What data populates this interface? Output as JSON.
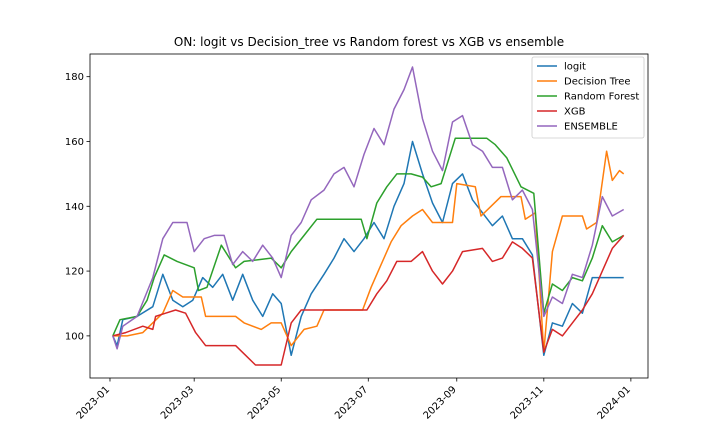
{
  "chart_data": {
    "type": "line",
    "title": "ON: logit vs Decision_tree vs Random forest vs XGB vs ensemble",
    "xlabel": "",
    "ylabel": "",
    "xlim": [
      "2022-12-18",
      "2024-01-13"
    ],
    "ylim": [
      87,
      187
    ],
    "x_ticks": [
      "2023-01",
      "2023-03",
      "2023-05",
      "2023-07",
      "2023-09",
      "2023-11",
      "2024-01"
    ],
    "y_ticks": [
      100,
      120,
      140,
      160,
      180
    ],
    "grid": false,
    "legend": "top-right",
    "series": [
      {
        "name": "logit",
        "color": "#1f77b4",
        "points": [
          [
            "2023-01-03",
            100
          ],
          [
            "2023-01-06",
            97
          ],
          [
            "2023-01-10",
            105
          ],
          [
            "2023-01-20",
            106
          ],
          [
            "2023-01-31",
            109
          ],
          [
            "2023-02-07",
            119
          ],
          [
            "2023-02-14",
            111
          ],
          [
            "2023-02-21",
            109
          ],
          [
            "2023-02-28",
            111
          ],
          [
            "2023-03-07",
            118
          ],
          [
            "2023-03-14",
            115
          ],
          [
            "2023-03-21",
            119
          ],
          [
            "2023-03-28",
            111
          ],
          [
            "2023-04-04",
            119
          ],
          [
            "2023-04-11",
            111
          ],
          [
            "2023-04-18",
            106
          ],
          [
            "2023-04-25",
            113
          ],
          [
            "2023-05-01",
            110
          ],
          [
            "2023-05-08",
            94
          ],
          [
            "2023-05-15",
            106
          ],
          [
            "2023-05-22",
            113
          ],
          [
            "2023-05-31",
            119
          ],
          [
            "2023-06-07",
            124
          ],
          [
            "2023-06-14",
            130
          ],
          [
            "2023-06-21",
            126
          ],
          [
            "2023-06-28",
            130
          ],
          [
            "2023-07-05",
            135
          ],
          [
            "2023-07-12",
            130
          ],
          [
            "2023-07-19",
            140
          ],
          [
            "2023-07-26",
            147
          ],
          [
            "2023-08-01",
            160
          ],
          [
            "2023-08-08",
            150
          ],
          [
            "2023-08-15",
            141
          ],
          [
            "2023-08-22",
            135
          ],
          [
            "2023-08-29",
            147
          ],
          [
            "2023-09-05",
            150
          ],
          [
            "2023-09-12",
            142
          ],
          [
            "2023-09-19",
            138
          ],
          [
            "2023-09-26",
            134
          ],
          [
            "2023-10-03",
            137
          ],
          [
            "2023-10-10",
            130
          ],
          [
            "2023-10-17",
            130
          ],
          [
            "2023-10-24",
            125
          ],
          [
            "2023-11-01",
            94
          ],
          [
            "2023-11-07",
            104
          ],
          [
            "2023-11-14",
            103
          ],
          [
            "2023-11-21",
            110
          ],
          [
            "2023-11-28",
            107
          ],
          [
            "2023-12-05",
            118
          ],
          [
            "2023-12-12",
            118
          ],
          [
            "2023-12-19",
            118
          ],
          [
            "2023-12-27",
            118
          ]
        ]
      },
      {
        "name": "Decision Tree",
        "color": "#ff7f0e",
        "points": [
          [
            "2023-01-03",
            100
          ],
          [
            "2023-01-13",
            100
          ],
          [
            "2023-01-24",
            101
          ],
          [
            "2023-02-07",
            107
          ],
          [
            "2023-02-14",
            114
          ],
          [
            "2023-02-21",
            112
          ],
          [
            "2023-03-06",
            112
          ],
          [
            "2023-03-09",
            106
          ],
          [
            "2023-03-30",
            106
          ],
          [
            "2023-04-05",
            104
          ],
          [
            "2023-04-17",
            102
          ],
          [
            "2023-04-24",
            104
          ],
          [
            "2023-05-01",
            104
          ],
          [
            "2023-05-08",
            97
          ],
          [
            "2023-05-17",
            102
          ],
          [
            "2023-05-26",
            103
          ],
          [
            "2023-05-31",
            108
          ],
          [
            "2023-06-27",
            108
          ],
          [
            "2023-07-03",
            115
          ],
          [
            "2023-07-10",
            122
          ],
          [
            "2023-07-17",
            129
          ],
          [
            "2023-07-24",
            134
          ],
          [
            "2023-08-01",
            137
          ],
          [
            "2023-08-08",
            139
          ],
          [
            "2023-08-15",
            135
          ],
          [
            "2023-08-29",
            135
          ],
          [
            "2023-09-01",
            147
          ],
          [
            "2023-09-14",
            146
          ],
          [
            "2023-09-18",
            137
          ],
          [
            "2023-09-25",
            140
          ],
          [
            "2023-10-02",
            143
          ],
          [
            "2023-10-16",
            143
          ],
          [
            "2023-10-19",
            136
          ],
          [
            "2023-10-26",
            138
          ],
          [
            "2023-11-01",
            95
          ],
          [
            "2023-11-07",
            126
          ],
          [
            "2023-11-14",
            137
          ],
          [
            "2023-11-28",
            137
          ],
          [
            "2023-12-01",
            133
          ],
          [
            "2023-12-08",
            135
          ],
          [
            "2023-12-15",
            157
          ],
          [
            "2023-12-19",
            148
          ],
          [
            "2023-12-24",
            151
          ],
          [
            "2023-12-27",
            150
          ]
        ]
      },
      {
        "name": "Random Forest",
        "color": "#2ca02c",
        "points": [
          [
            "2023-01-03",
            100
          ],
          [
            "2023-01-08",
            105
          ],
          [
            "2023-01-20",
            106
          ],
          [
            "2023-01-27",
            111
          ],
          [
            "2023-02-01",
            118
          ],
          [
            "2023-02-08",
            125
          ],
          [
            "2023-02-17",
            123
          ],
          [
            "2023-03-01",
            121
          ],
          [
            "2023-03-04",
            114
          ],
          [
            "2023-03-10",
            115
          ],
          [
            "2023-03-20",
            128
          ],
          [
            "2023-03-30",
            121
          ],
          [
            "2023-04-05",
            123
          ],
          [
            "2023-04-24",
            124
          ],
          [
            "2023-05-01",
            121
          ],
          [
            "2023-05-08",
            126
          ],
          [
            "2023-05-17",
            131
          ],
          [
            "2023-05-26",
            136
          ],
          [
            "2023-06-26",
            136
          ],
          [
            "2023-06-30",
            130
          ],
          [
            "2023-07-07",
            141
          ],
          [
            "2023-07-14",
            146
          ],
          [
            "2023-07-21",
            150
          ],
          [
            "2023-07-31",
            150
          ],
          [
            "2023-08-08",
            149
          ],
          [
            "2023-08-14",
            146
          ],
          [
            "2023-08-21",
            147
          ],
          [
            "2023-08-31",
            161
          ],
          [
            "2023-09-22",
            161
          ],
          [
            "2023-09-28",
            159
          ],
          [
            "2023-10-06",
            155
          ],
          [
            "2023-10-16",
            146
          ],
          [
            "2023-10-25",
            144
          ],
          [
            "2023-11-01",
            107
          ],
          [
            "2023-11-07",
            116
          ],
          [
            "2023-11-14",
            114
          ],
          [
            "2023-11-21",
            118
          ],
          [
            "2023-11-28",
            117
          ],
          [
            "2023-12-05",
            124
          ],
          [
            "2023-12-12",
            134
          ],
          [
            "2023-12-19",
            129
          ],
          [
            "2023-12-27",
            131
          ]
        ]
      },
      {
        "name": "XGB",
        "color": "#d62728",
        "points": [
          [
            "2023-01-03",
            100
          ],
          [
            "2023-01-12",
            101
          ],
          [
            "2023-01-24",
            103
          ],
          [
            "2023-01-31",
            102
          ],
          [
            "2023-02-02",
            106
          ],
          [
            "2023-02-09",
            107
          ],
          [
            "2023-02-16",
            108
          ],
          [
            "2023-02-23",
            107
          ],
          [
            "2023-03-02",
            101
          ],
          [
            "2023-03-09",
            97
          ],
          [
            "2023-03-30",
            97
          ],
          [
            "2023-04-06",
            94
          ],
          [
            "2023-04-13",
            91
          ],
          [
            "2023-05-01",
            91
          ],
          [
            "2023-05-08",
            104
          ],
          [
            "2023-05-15",
            108
          ],
          [
            "2023-06-30",
            108
          ],
          [
            "2023-07-07",
            113
          ],
          [
            "2023-07-14",
            117
          ],
          [
            "2023-07-21",
            123
          ],
          [
            "2023-07-31",
            123
          ],
          [
            "2023-08-08",
            126
          ],
          [
            "2023-08-15",
            120
          ],
          [
            "2023-08-22",
            116
          ],
          [
            "2023-08-29",
            120
          ],
          [
            "2023-09-05",
            126
          ],
          [
            "2023-09-19",
            127
          ],
          [
            "2023-09-26",
            123
          ],
          [
            "2023-10-03",
            124
          ],
          [
            "2023-10-10",
            129
          ],
          [
            "2023-10-17",
            127
          ],
          [
            "2023-10-24",
            124
          ],
          [
            "2023-11-01",
            95
          ],
          [
            "2023-11-07",
            102
          ],
          [
            "2023-11-14",
            100
          ],
          [
            "2023-11-21",
            104
          ],
          [
            "2023-11-28",
            108
          ],
          [
            "2023-12-05",
            113
          ],
          [
            "2023-12-12",
            120
          ],
          [
            "2023-12-19",
            127
          ],
          [
            "2023-12-27",
            131
          ]
        ]
      },
      {
        "name": "ENSEMBLE",
        "color": "#9467bd",
        "points": [
          [
            "2023-01-03",
            100
          ],
          [
            "2023-01-06",
            96
          ],
          [
            "2023-01-10",
            103
          ],
          [
            "2023-01-20",
            106
          ],
          [
            "2023-01-31",
            118
          ],
          [
            "2023-02-07",
            130
          ],
          [
            "2023-02-14",
            135
          ],
          [
            "2023-02-24",
            135
          ],
          [
            "2023-03-01",
            126
          ],
          [
            "2023-03-08",
            130
          ],
          [
            "2023-03-15",
            131
          ],
          [
            "2023-03-22",
            131
          ],
          [
            "2023-03-28",
            122
          ],
          [
            "2023-04-04",
            126
          ],
          [
            "2023-04-11",
            123
          ],
          [
            "2023-04-18",
            128
          ],
          [
            "2023-04-25",
            124
          ],
          [
            "2023-05-01",
            118
          ],
          [
            "2023-05-08",
            131
          ],
          [
            "2023-05-15",
            135
          ],
          [
            "2023-05-22",
            142
          ],
          [
            "2023-05-31",
            145
          ],
          [
            "2023-06-07",
            150
          ],
          [
            "2023-06-14",
            152
          ],
          [
            "2023-06-21",
            146
          ],
          [
            "2023-06-28",
            156
          ],
          [
            "2023-07-05",
            164
          ],
          [
            "2023-07-12",
            159
          ],
          [
            "2023-07-19",
            170
          ],
          [
            "2023-07-26",
            176
          ],
          [
            "2023-08-01",
            183
          ],
          [
            "2023-08-08",
            167
          ],
          [
            "2023-08-15",
            157
          ],
          [
            "2023-08-22",
            151
          ],
          [
            "2023-08-29",
            166
          ],
          [
            "2023-09-05",
            168
          ],
          [
            "2023-09-12",
            159
          ],
          [
            "2023-09-19",
            157
          ],
          [
            "2023-09-26",
            152
          ],
          [
            "2023-10-03",
            152
          ],
          [
            "2023-10-10",
            142
          ],
          [
            "2023-10-17",
            145
          ],
          [
            "2023-10-24",
            139
          ],
          [
            "2023-11-01",
            106
          ],
          [
            "2023-11-07",
            112
          ],
          [
            "2023-11-14",
            110
          ],
          [
            "2023-11-21",
            119
          ],
          [
            "2023-11-28",
            118
          ],
          [
            "2023-12-05",
            128
          ],
          [
            "2023-12-12",
            143
          ],
          [
            "2023-12-19",
            137
          ],
          [
            "2023-12-27",
            139
          ]
        ]
      }
    ]
  }
}
